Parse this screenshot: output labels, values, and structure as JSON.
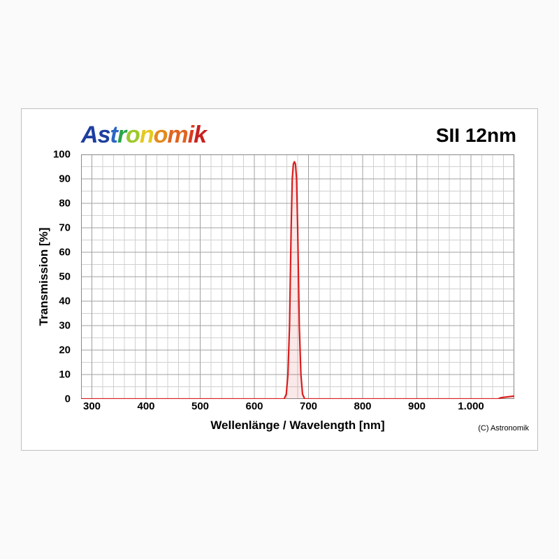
{
  "logo": {
    "text": "Astronomik",
    "letter_colors": [
      "#1e3fa0",
      "#1e3fa0",
      "#2b66c2",
      "#2aa54a",
      "#9ec82a",
      "#e6c81e",
      "#e48a1e",
      "#e0641e",
      "#da3a1e",
      "#c82020"
    ]
  },
  "product_label": "SII 12nm",
  "chart": {
    "type": "line",
    "background_color": "#ffffff",
    "plot_border_color": "#888888",
    "plot_border_width": 2,
    "grid_major_color": "#a0a0a0",
    "grid_minor_color": "#d0d0d0",
    "x": {
      "min": 280,
      "max": 1080,
      "major_step": 100,
      "minor_step": 20,
      "tick_labels": [
        "300",
        "400",
        "500",
        "600",
        "700",
        "800",
        "900",
        "1.000"
      ],
      "tick_positions": [
        300,
        400,
        500,
        600,
        700,
        800,
        900,
        1000
      ]
    },
    "y": {
      "min": 0,
      "max": 100,
      "major_step": 10,
      "minor_step": 5,
      "tick_labels": [
        "0",
        "10",
        "20",
        "30",
        "40",
        "50",
        "60",
        "70",
        "80",
        "90",
        "100"
      ],
      "tick_positions": [
        0,
        10,
        20,
        30,
        40,
        50,
        60,
        70,
        80,
        90,
        100
      ]
    },
    "series": {
      "line_color": "#d81e1e",
      "line_width": 2.2,
      "fill_color": "rgba(216,30,30,0.10)",
      "points": [
        [
          280,
          0
        ],
        [
          655,
          0
        ],
        [
          659,
          2
        ],
        [
          662,
          10
        ],
        [
          665,
          30
        ],
        [
          668,
          70
        ],
        [
          670,
          90
        ],
        [
          672,
          96
        ],
        [
          674,
          97
        ],
        [
          676,
          96
        ],
        [
          678,
          90
        ],
        [
          680,
          70
        ],
        [
          683,
          30
        ],
        [
          686,
          10
        ],
        [
          689,
          2
        ],
        [
          693,
          0
        ],
        [
          1050,
          0
        ],
        [
          1055,
          0.5
        ],
        [
          1065,
          0.8
        ],
        [
          1080,
          1.2
        ]
      ]
    }
  },
  "labels": {
    "x_axis": "Wellenlänge / Wavelength [nm]",
    "y_axis": "Transmission [%]"
  },
  "copyright": "(C) Astronomik"
}
